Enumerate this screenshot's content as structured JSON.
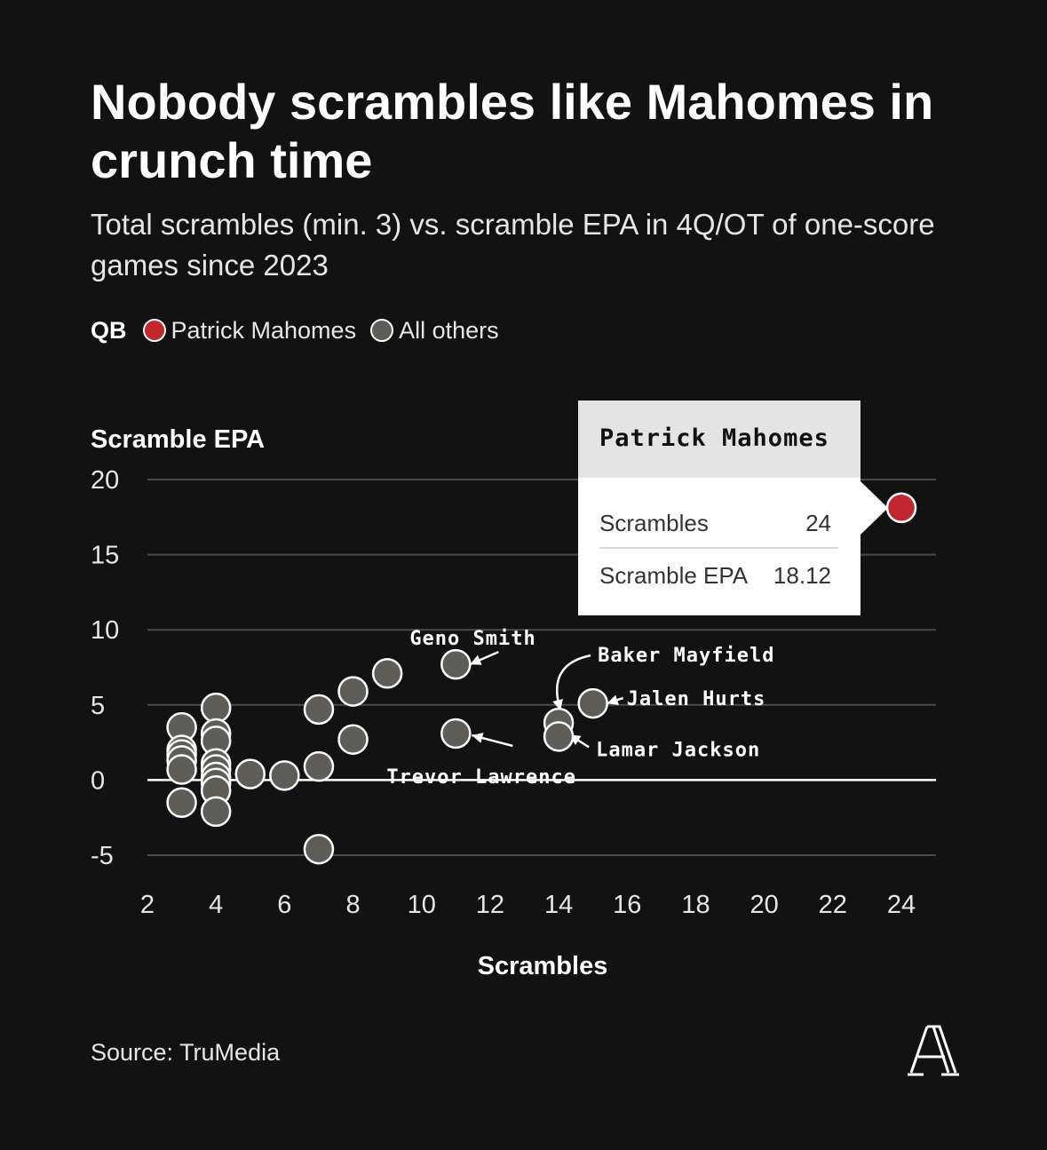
{
  "title": "Nobody scrambles like Mahomes in crunch time",
  "subtitle": "Total scrambles (min. 3) vs. scramble EPA in 4Q/OT of one-score games since 2023",
  "legend": {
    "title": "QB",
    "items": [
      {
        "label": "Patrick Mahomes",
        "color": "#c1272d"
      },
      {
        "label": "All others",
        "color": "#5e5d58"
      }
    ]
  },
  "tooltip": {
    "name": "Patrick Mahomes",
    "rows": [
      {
        "label": "Scrambles",
        "value": "24"
      },
      {
        "label": "Scramble EPA",
        "value": "18.12"
      }
    ]
  },
  "source": "Source: TruMedia",
  "chart_data": {
    "type": "scatter",
    "xlabel": "Scrambles",
    "ylabel": "Scramble EPA",
    "xlim": [
      2,
      25
    ],
    "ylim": [
      -6,
      20
    ],
    "xticks": [
      2,
      4,
      6,
      8,
      10,
      12,
      14,
      16,
      18,
      20,
      22,
      24
    ],
    "yticks": [
      -5,
      0,
      5,
      10,
      15,
      20
    ],
    "grid": "horizontal",
    "series": [
      {
        "name": "All others",
        "color": "#5e5d58",
        "points": [
          {
            "x": 3,
            "y": 3.5
          },
          {
            "x": 3,
            "y": 2.0
          },
          {
            "x": 3,
            "y": 1.7
          },
          {
            "x": 3,
            "y": 1.3
          },
          {
            "x": 3,
            "y": 0.7
          },
          {
            "x": 3,
            "y": -1.5
          },
          {
            "x": 4,
            "y": 4.8
          },
          {
            "x": 4,
            "y": 3.1
          },
          {
            "x": 4,
            "y": 2.6
          },
          {
            "x": 4,
            "y": 1.1
          },
          {
            "x": 4,
            "y": 0.7
          },
          {
            "x": 4,
            "y": 0.2
          },
          {
            "x": 4,
            "y": -0.2
          },
          {
            "x": 4,
            "y": -0.7
          },
          {
            "x": 4,
            "y": -2.1
          },
          {
            "x": 5,
            "y": 0.4
          },
          {
            "x": 6,
            "y": 0.3
          },
          {
            "x": 7,
            "y": 4.7
          },
          {
            "x": 7,
            "y": 0.9
          },
          {
            "x": 7,
            "y": -4.6
          },
          {
            "x": 8,
            "y": 5.9
          },
          {
            "x": 8,
            "y": 2.7
          },
          {
            "x": 9,
            "y": 7.1
          },
          {
            "x": 11,
            "y": 7.7,
            "label": "Geno Smith"
          },
          {
            "x": 11,
            "y": 3.1,
            "label": "Trevor Lawrence"
          },
          {
            "x": 14,
            "y": 3.8,
            "label": "Baker Mayfield"
          },
          {
            "x": 14,
            "y": 2.9,
            "label": "Lamar Jackson"
          },
          {
            "x": 15,
            "y": 5.1,
            "label": "Jalen Hurts"
          }
        ]
      },
      {
        "name": "Patrick Mahomes",
        "color": "#c1272d",
        "points": [
          {
            "x": 24,
            "y": 18.12
          }
        ]
      }
    ]
  }
}
